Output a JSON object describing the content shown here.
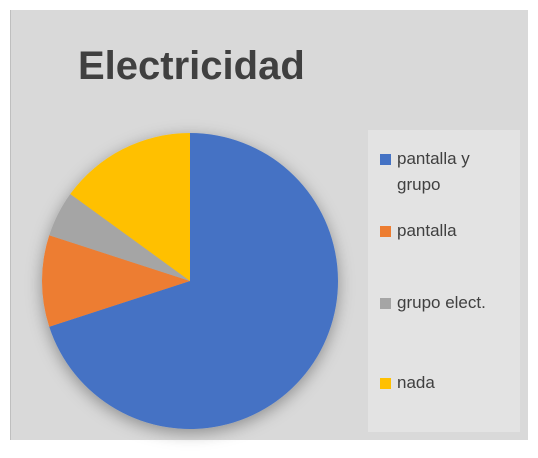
{
  "chart_data": {
    "type": "pie",
    "title": "Electricidad",
    "categories": [
      "pantalla y grupo",
      "pantalla",
      "grupo elect.",
      "nada"
    ],
    "values": [
      70,
      10,
      5,
      15
    ],
    "colors": [
      "#4472c4",
      "#ed7d31",
      "#a5a5a5",
      "#ffc000"
    ],
    "legend": "right"
  }
}
